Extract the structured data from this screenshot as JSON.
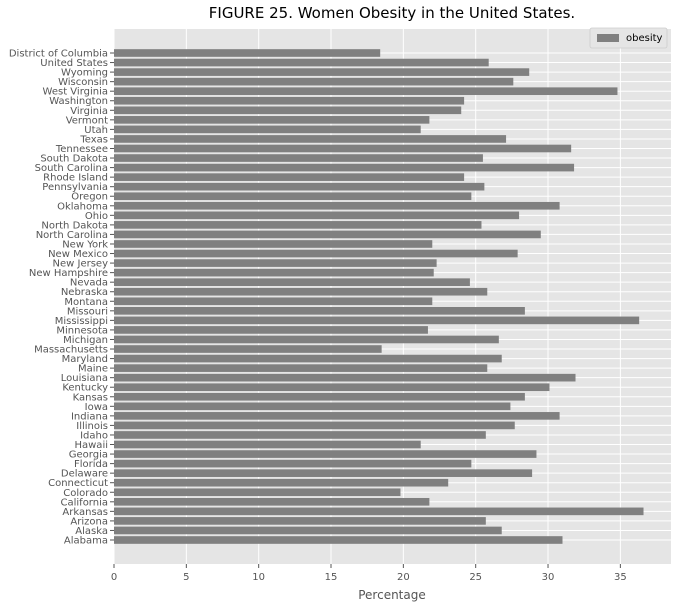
{
  "chart_data": {
    "type": "bar",
    "orientation": "horizontal",
    "title": "FIGURE 25. Women Obesity in the United States.",
    "xlabel": "Percentage",
    "ylabel": "",
    "xlim": [
      0,
      38.5
    ],
    "xticks": [
      0,
      5,
      10,
      15,
      20,
      25,
      30,
      35
    ],
    "grid": true,
    "legend_position": "top-right",
    "background_color": "#e5e5e5",
    "bar_color": "#808080",
    "series": [
      {
        "name": "obesity",
        "values": [
          31.0,
          26.8,
          25.7,
          36.6,
          21.8,
          19.8,
          23.1,
          28.9,
          24.7,
          29.2,
          21.2,
          25.7,
          27.7,
          30.8,
          27.4,
          28.4,
          30.1,
          31.9,
          25.8,
          26.8,
          18.5,
          26.6,
          21.7,
          36.3,
          28.4,
          22.0,
          25.8,
          24.6,
          22.1,
          22.3,
          27.9,
          22.0,
          29.5,
          25.4,
          28.0,
          30.8,
          24.7,
          25.6,
          24.2,
          31.8,
          25.5,
          31.6,
          27.1,
          21.2,
          21.8,
          24.0,
          24.2,
          34.8,
          27.6,
          28.7,
          25.9,
          18.4
        ]
      }
    ],
    "categories": [
      "Alabama",
      "Alaska",
      "Arizona",
      "Arkansas",
      "California",
      "Colorado",
      "Connecticut",
      "Delaware",
      "Florida",
      "Georgia",
      "Hawaii",
      "Idaho",
      "Illinois",
      "Indiana",
      "Iowa",
      "Kansas",
      "Kentucky",
      "Louisiana",
      "Maine",
      "Maryland",
      "Massachusetts",
      "Michigan",
      "Minnesota",
      "Mississippi",
      "Missouri",
      "Montana",
      "Nebraska",
      "Nevada",
      "New Hampshire",
      "New Jersey",
      "New Mexico",
      "New York",
      "North Carolina",
      "North Dakota",
      "Ohio",
      "Oklahoma",
      "Oregon",
      "Pennsylvania",
      "Rhode Island",
      "South Carolina",
      "South Dakota",
      "Tennessee",
      "Texas",
      "Utah",
      "Vermont",
      "Virginia",
      "Washington",
      "West Virginia",
      "Wisconsin",
      "Wyoming",
      "United States",
      "District of Columbia"
    ]
  }
}
